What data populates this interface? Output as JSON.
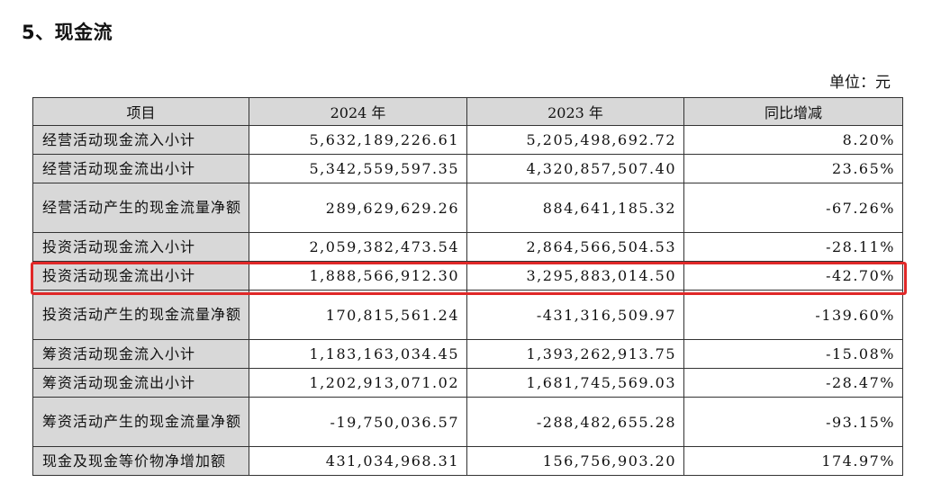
{
  "section": {
    "title": "5、现金流"
  },
  "unit": {
    "label": "单位：元"
  },
  "table": {
    "headers": [
      "项目",
      "2024 年",
      "2023 年",
      "同比增减"
    ],
    "rows": [
      {
        "item": "经营活动现金流入小计",
        "y2024": "5,632,189,226.61",
        "y2023": "5,205,498,692.72",
        "change": "8.20%"
      },
      {
        "item": "经营活动现金流出小计",
        "y2024": "5,342,559,597.35",
        "y2023": "4,320,857,507.40",
        "change": "23.65%"
      },
      {
        "item": "经营活动产生的现金流量净额",
        "y2024": "289,629,629.26",
        "y2023": "884,641,185.32",
        "change": "-67.26%"
      },
      {
        "item": "投资活动现金流入小计",
        "y2024": "2,059,382,473.54",
        "y2023": "2,864,566,504.53",
        "change": "-28.11%"
      },
      {
        "item": "投资活动现金流出小计",
        "y2024": "1,888,566,912.30",
        "y2023": "3,295,883,014.50",
        "change": "-42.70%"
      },
      {
        "item": "投资活动产生的现金流量净额",
        "y2024": "170,815,561.24",
        "y2023": "-431,316,509.97",
        "change": "-139.60%"
      },
      {
        "item": "筹资活动现金流入小计",
        "y2024": "1,183,163,034.45",
        "y2023": "1,393,262,913.75",
        "change": "-15.08%"
      },
      {
        "item": "筹资活动现金流出小计",
        "y2024": "1,202,913,071.02",
        "y2023": "1,681,745,569.03",
        "change": "-28.47%"
      },
      {
        "item": "筹资活动产生的现金流量净额",
        "y2024": "-19,750,036.57",
        "y2023": "-288,482,655.28",
        "change": "-93.15%"
      },
      {
        "item": "现金及现金等价物净增加额",
        "y2024": "431,034,968.31",
        "y2023": "156,756,903.20",
        "change": "174.97%"
      }
    ]
  },
  "colors": {
    "highlight": "#e02828",
    "label_cell_bg": "#d8d8d8",
    "border": "#333333"
  }
}
